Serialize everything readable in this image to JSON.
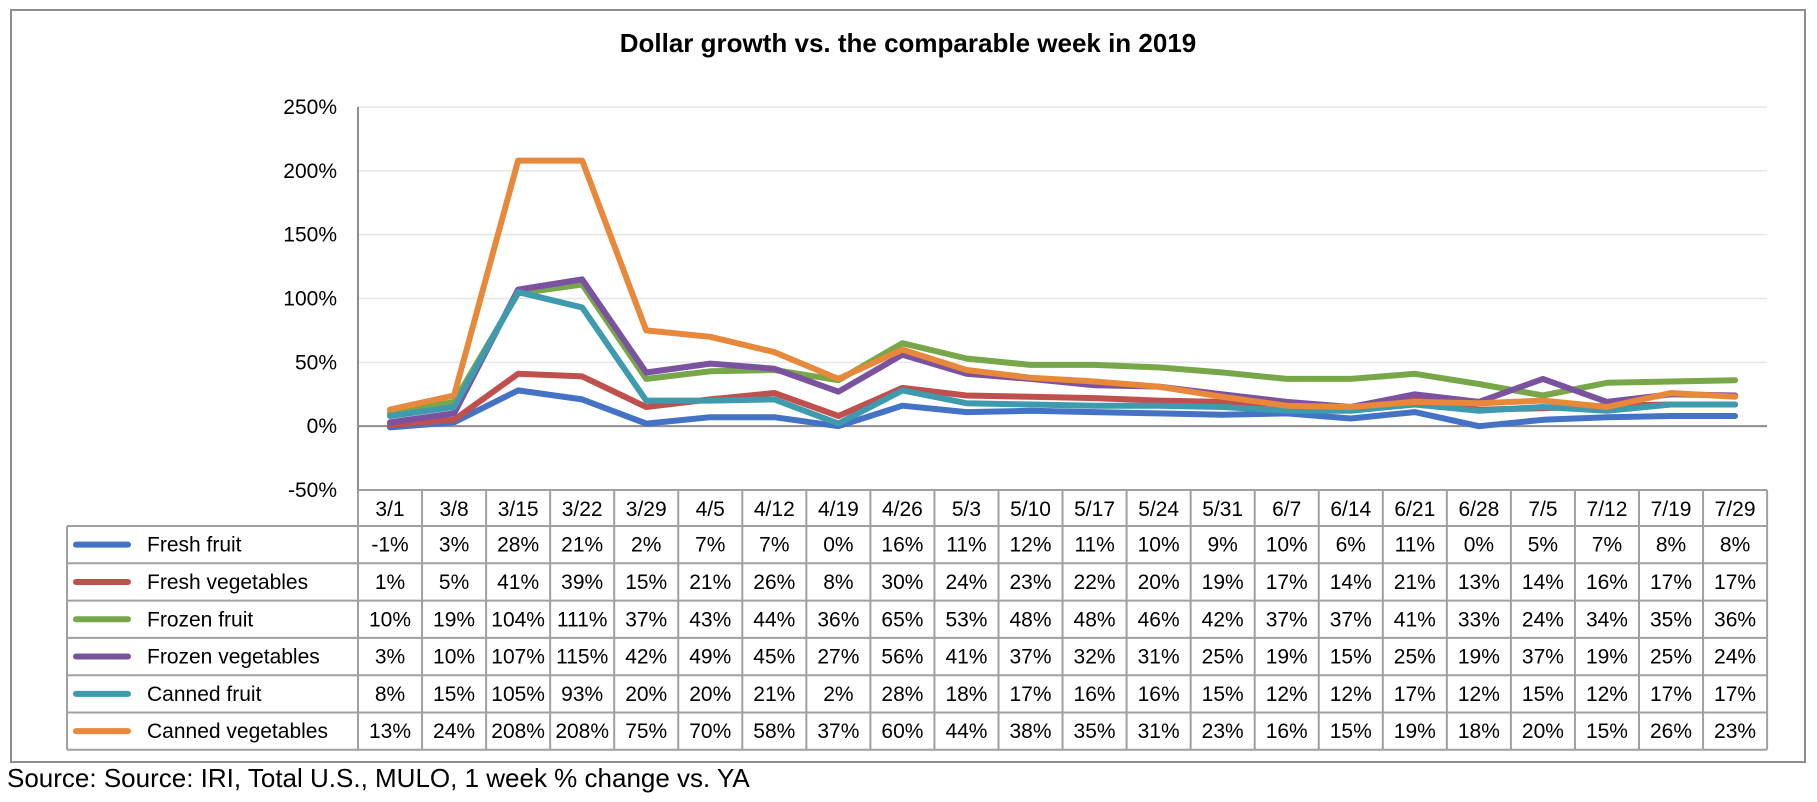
{
  "source_note": "Source: Source: IRI, Total U.S., MULO, 1 week % change vs. YA",
  "chart_data": {
    "type": "line",
    "title": "Dollar growth vs. the comparable week in 2019",
    "xlabel": "",
    "ylabel": "",
    "ylim": [
      -50,
      250
    ],
    "y_ticks": [
      -50,
      0,
      50,
      100,
      150,
      200,
      250
    ],
    "y_tick_labels": [
      "-50%",
      "0%",
      "50%",
      "100%",
      "150%",
      "200%",
      "250%"
    ],
    "grid": true,
    "legend_placement": "data table below chart",
    "categories": [
      "3/1",
      "3/8",
      "3/15",
      "3/22",
      "3/29",
      "4/5",
      "4/12",
      "4/19",
      "4/26",
      "5/3",
      "5/10",
      "5/17",
      "5/24",
      "5/31",
      "6/7",
      "6/14",
      "6/21",
      "6/28",
      "7/5",
      "7/12",
      "7/19",
      "7/29"
    ],
    "series": [
      {
        "name": "Fresh fruit",
        "color": "#4472c4",
        "values": [
          -1,
          3,
          28,
          21,
          2,
          7,
          7,
          0,
          16,
          11,
          12,
          11,
          10,
          9,
          10,
          6,
          11,
          0,
          5,
          7,
          8,
          8
        ],
        "labels": [
          "-1%",
          "3%",
          "28%",
          "21%",
          "2%",
          "7%",
          "7%",
          "0%",
          "16%",
          "11%",
          "12%",
          "11%",
          "10%",
          "9%",
          "10%",
          "6%",
          "11%",
          "0%",
          "5%",
          "7%",
          "8%",
          "8%"
        ]
      },
      {
        "name": "Fresh vegetables",
        "color": "#c0504d",
        "values": [
          1,
          5,
          41,
          39,
          15,
          21,
          26,
          8,
          30,
          24,
          23,
          22,
          20,
          19,
          17,
          14,
          21,
          13,
          14,
          16,
          17,
          17
        ],
        "labels": [
          "1%",
          "5%",
          "41%",
          "39%",
          "15%",
          "21%",
          "26%",
          "8%",
          "30%",
          "24%",
          "23%",
          "22%",
          "20%",
          "19%",
          "17%",
          "14%",
          "21%",
          "13%",
          "14%",
          "16%",
          "17%",
          "17%"
        ]
      },
      {
        "name": "Frozen fruit",
        "color": "#77a748",
        "values": [
          10,
          19,
          104,
          111,
          37,
          43,
          44,
          36,
          65,
          53,
          48,
          48,
          46,
          42,
          37,
          37,
          41,
          33,
          24,
          34,
          35,
          36
        ],
        "labels": [
          "10%",
          "19%",
          "104%",
          "111%",
          "37%",
          "43%",
          "44%",
          "36%",
          "65%",
          "53%",
          "48%",
          "48%",
          "46%",
          "42%",
          "37%",
          "37%",
          "41%",
          "33%",
          "24%",
          "34%",
          "35%",
          "36%"
        ]
      },
      {
        "name": "Frozen vegetables",
        "color": "#7a52a0",
        "values": [
          3,
          10,
          107,
          115,
          42,
          49,
          45,
          27,
          56,
          41,
          37,
          32,
          31,
          25,
          19,
          15,
          25,
          19,
          37,
          19,
          25,
          24
        ],
        "labels": [
          "3%",
          "10%",
          "107%",
          "115%",
          "42%",
          "49%",
          "45%",
          "27%",
          "56%",
          "41%",
          "37%",
          "32%",
          "31%",
          "25%",
          "19%",
          "15%",
          "25%",
          "19%",
          "37%",
          "19%",
          "25%",
          "24%"
        ]
      },
      {
        "name": "Canned fruit",
        "color": "#3e9aad",
        "values": [
          8,
          15,
          105,
          93,
          20,
          20,
          21,
          2,
          28,
          18,
          17,
          16,
          16,
          15,
          12,
          12,
          17,
          12,
          15,
          12,
          17,
          17
        ],
        "labels": [
          "8%",
          "15%",
          "105%",
          "93%",
          "20%",
          "20%",
          "21%",
          "2%",
          "28%",
          "18%",
          "17%",
          "16%",
          "16%",
          "15%",
          "12%",
          "12%",
          "17%",
          "12%",
          "15%",
          "12%",
          "17%",
          "17%"
        ]
      },
      {
        "name": "Canned vegetables",
        "color": "#e8883a",
        "values": [
          13,
          24,
          208,
          208,
          75,
          70,
          58,
          37,
          60,
          44,
          38,
          35,
          31,
          23,
          16,
          15,
          19,
          18,
          20,
          15,
          26,
          23
        ],
        "labels": [
          "13%",
          "24%",
          "208%",
          "208%",
          "75%",
          "70%",
          "58%",
          "37%",
          "60%",
          "44%",
          "38%",
          "35%",
          "31%",
          "23%",
          "16%",
          "15%",
          "19%",
          "18%",
          "20%",
          "15%",
          "26%",
          "23%"
        ]
      }
    ]
  }
}
